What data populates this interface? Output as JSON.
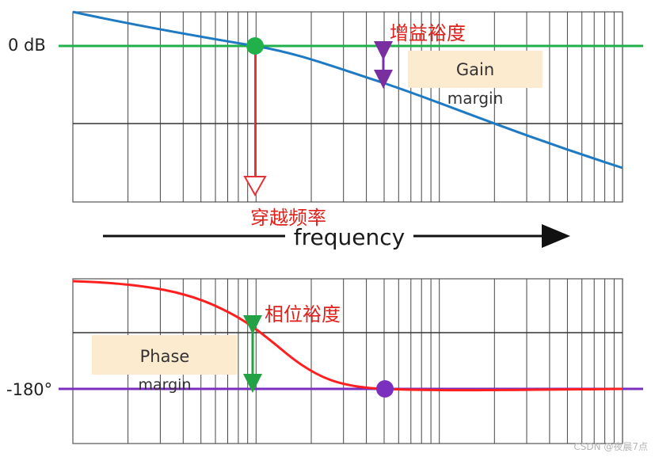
{
  "top_panel": {
    "zero_db_label": "0 dB",
    "gain_margin_cn": "增益裕度",
    "gain_margin_en_line1": "Gain",
    "gain_margin_en_line2": "margin",
    "crossover_cn": "穿越频率"
  },
  "frequency_axis": {
    "label": "frequency"
  },
  "bottom_panel": {
    "minus180_label": "-180°",
    "phase_margin_cn": "相位裕度",
    "phase_margin_en_line1": "Phase",
    "phase_margin_en_line2": "margin"
  },
  "watermark": "CSDN @夜晨7点",
  "colors": {
    "gain_curve": "#1f7ac4",
    "zero_db_line": "#22b04b",
    "crossover_marker": "#22b04b",
    "crossover_arrow": "#e53238",
    "gain_margin_arrow": "#7a2fa0",
    "phase_curve": "#ff1f1f",
    "minus180_line": "#7b2fbf",
    "phase_marker": "#7b2fbf",
    "phase_margin_arrow": "#22a244",
    "label_box": "#fdebd0",
    "chinese_text": "#e0201b"
  }
}
